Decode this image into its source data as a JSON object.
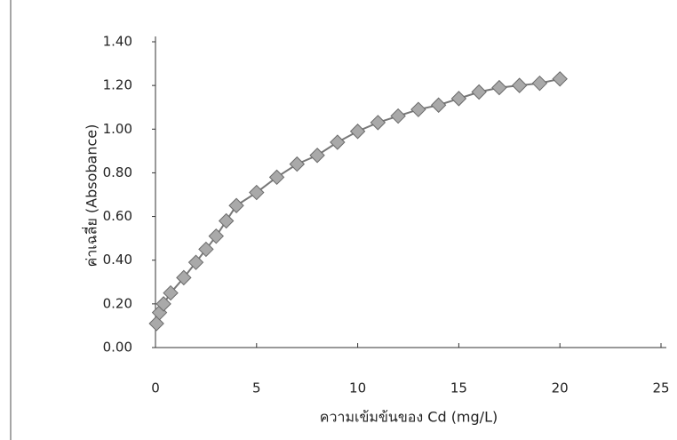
{
  "chart_data": {
    "type": "scatter",
    "x_label": "ความเข้มข้นของ Cd (mg/L)",
    "y_label": "ค่าเฉลี่ย (Absobance)",
    "x": [
      0.05,
      0.2,
      0.4,
      0.75,
      1.4,
      2,
      2.5,
      3,
      3.5,
      4,
      5,
      6,
      7,
      8,
      9,
      10,
      11,
      12,
      13,
      14,
      15,
      16,
      17,
      18,
      19,
      20
    ],
    "series": [
      {
        "color": "#a9a9a9",
        "values": [
          0.11,
          0.16,
          0.2,
          0.25,
          0.32,
          0.39,
          0.45,
          0.51,
          0.58,
          0.65,
          0.71,
          0.78,
          0.84,
          0.88,
          0.94,
          0.99,
          1.03,
          1.06,
          1.09,
          1.11,
          1.14,
          1.17,
          1.19,
          1.2,
          1.21,
          1.23
        ]
      }
    ],
    "xlim": [
      0,
      25
    ],
    "xticks": [
      0,
      5,
      10,
      15,
      20,
      25
    ],
    "ylim": [
      0,
      1.4
    ],
    "yticks": [
      {
        "value": 0,
        "label": "0.00"
      },
      {
        "value": 0.2,
        "label": "0.20"
      },
      {
        "value": 0.4,
        "label": "0.40"
      },
      {
        "value": 0.6,
        "label": "0.60"
      },
      {
        "value": 0.8,
        "label": "0.80"
      },
      {
        "value": 1,
        "label": "1.00"
      },
      {
        "value": 1.2,
        "label": "1.20"
      },
      {
        "value": 1.4,
        "label": "1.40"
      }
    ],
    "grid": false
  }
}
